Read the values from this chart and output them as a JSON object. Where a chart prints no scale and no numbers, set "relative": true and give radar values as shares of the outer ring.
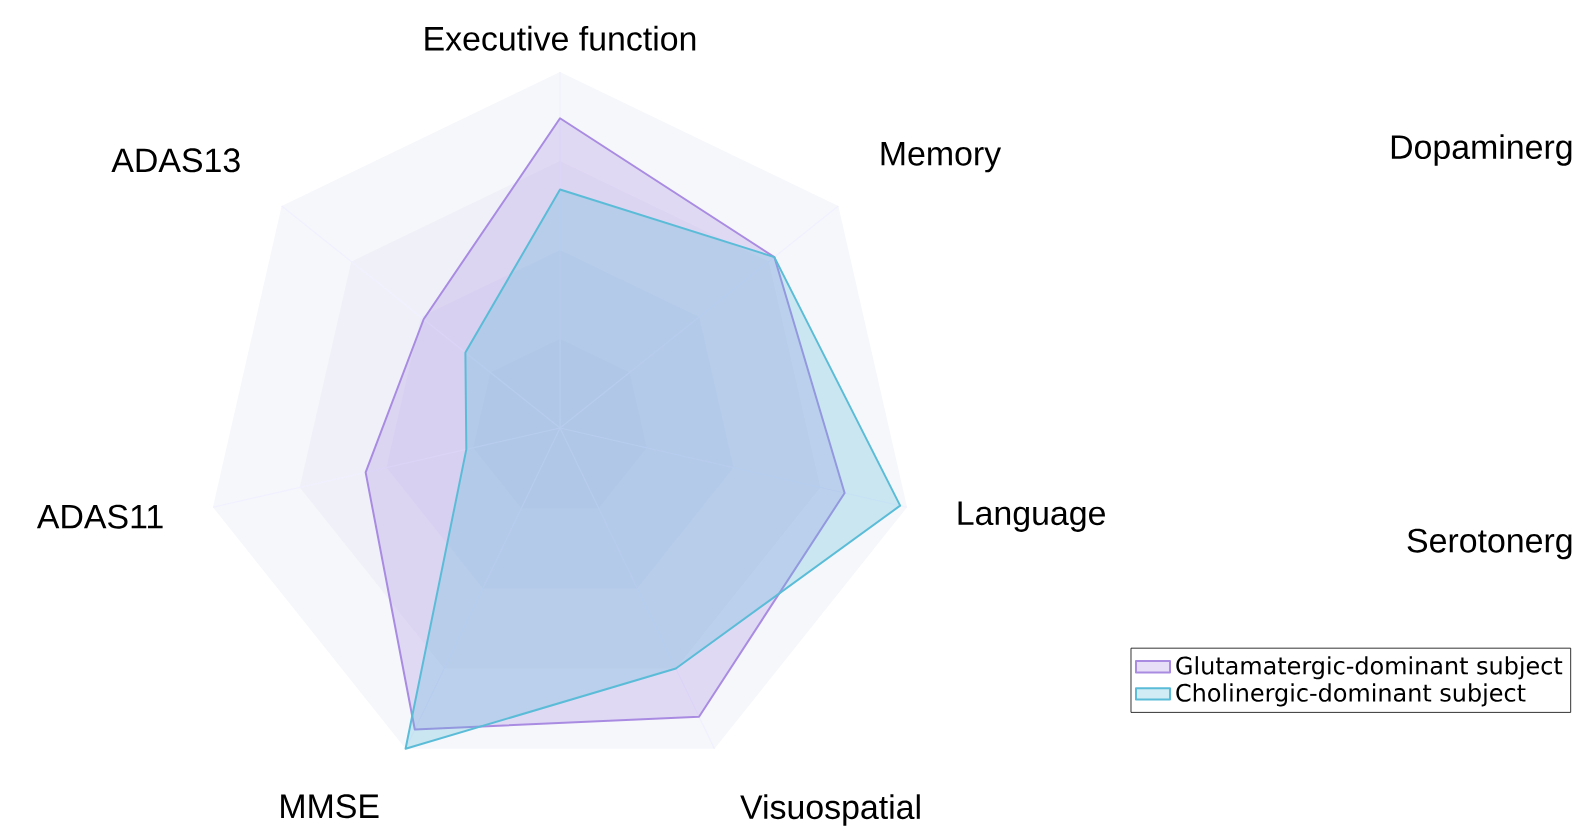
{
  "chart_data": {
    "type": "radar",
    "categories": [
      "Executive function",
      "Memory",
      "Language",
      "Visuospatial",
      "MMSE",
      "ADAS11",
      "ADAS13"
    ],
    "relative": true,
    "grid": true,
    "legend": "bottom right",
    "series": [
      {
        "name": "Glutamatergic-dominant subject",
        "color": "#a98be2",
        "values": [
          0.87,
          0.77,
          0.82,
          0.9,
          0.94,
          0.56,
          0.49
        ]
      },
      {
        "name": "Cholinergic-dominant subject",
        "color": "#5bbcd8",
        "values": [
          0.67,
          0.77,
          0.98,
          0.75,
          1.0,
          0.27,
          0.34
        ]
      }
    ],
    "annotations": [
      "Dopaminerg",
      "Serotonerg"
    ]
  }
}
